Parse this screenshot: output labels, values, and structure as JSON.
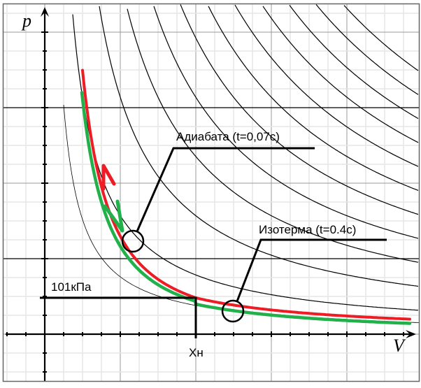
{
  "axes": {
    "y_label": "p",
    "x_label": "V"
  },
  "annotations": {
    "adiabat": "Адиабата (t=0,07с)",
    "isotherm": "Изотерма (t=0.4с)",
    "pressure": "101кПа",
    "volume": "Xн"
  },
  "colors": {
    "red_curve": "#ee1c25",
    "green_curve": "#22b04b",
    "grid_minor": "#e6e6e6",
    "grid_major": "#9a9a9a",
    "ink": "#000000"
  }
}
